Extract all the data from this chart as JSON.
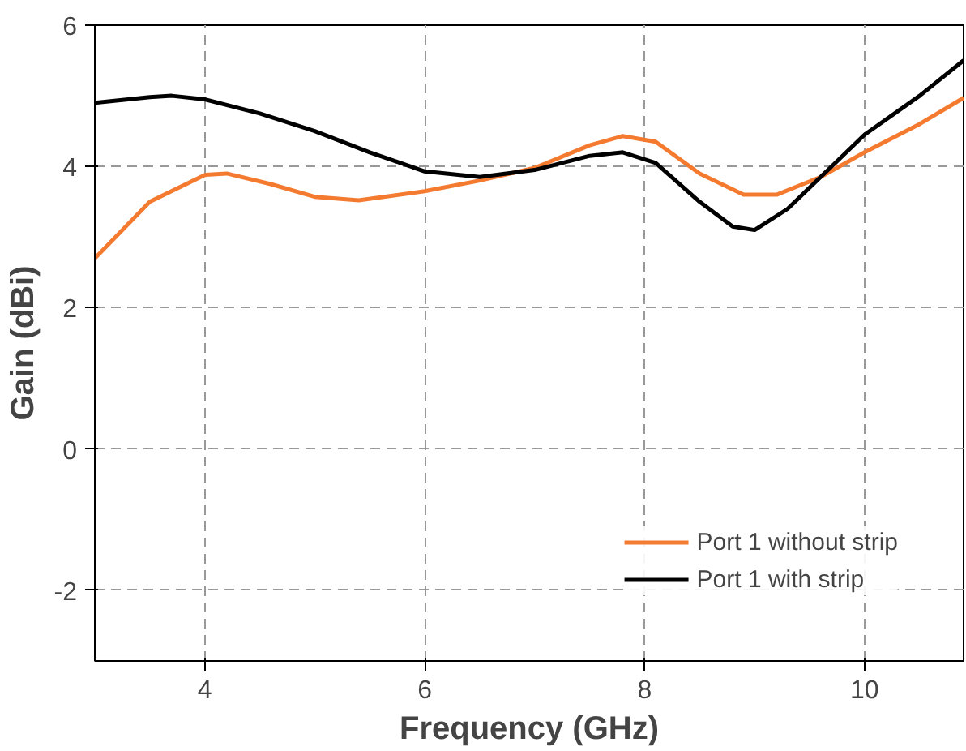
{
  "chart_data": {
    "type": "line",
    "xlabel": "Frequency (GHz)",
    "ylabel": "Gain (dBi)",
    "xlim": [
      3,
      10.9
    ],
    "ylim": [
      -3,
      6
    ],
    "xticks": [
      4,
      6,
      8,
      10
    ],
    "yticks": [
      -2,
      0,
      2,
      4,
      6
    ],
    "grid": true,
    "legend": "bottom right",
    "line_style": "solid",
    "marker": "none",
    "series": [
      {
        "name": "Port 1 without strip",
        "color": "#f47a30",
        "x": [
          3,
          3.5,
          4,
          4.2,
          4.6,
          5,
          5.4,
          6,
          6.5,
          7,
          7.5,
          7.8,
          8.1,
          8.5,
          8.9,
          9.2,
          9.6,
          10,
          10.5,
          10.9
        ],
        "values": [
          2.7,
          3.5,
          3.88,
          3.9,
          3.75,
          3.57,
          3.52,
          3.65,
          3.8,
          3.98,
          4.3,
          4.43,
          4.35,
          3.9,
          3.6,
          3.6,
          3.85,
          4.2,
          4.6,
          4.97
        ]
      },
      {
        "name": "Port 1 with strip",
        "color": "#000000",
        "x": [
          3,
          3.5,
          3.7,
          4,
          4.5,
          5,
          5.5,
          6,
          6.5,
          7,
          7.5,
          7.8,
          8.1,
          8.5,
          8.8,
          9,
          9.3,
          9.7,
          10,
          10.5,
          10.9
        ],
        "values": [
          4.9,
          4.98,
          5.0,
          4.95,
          4.75,
          4.5,
          4.2,
          3.93,
          3.85,
          3.95,
          4.15,
          4.2,
          4.05,
          3.5,
          3.15,
          3.1,
          3.4,
          4.0,
          4.45,
          5.0,
          5.5
        ]
      }
    ]
  }
}
